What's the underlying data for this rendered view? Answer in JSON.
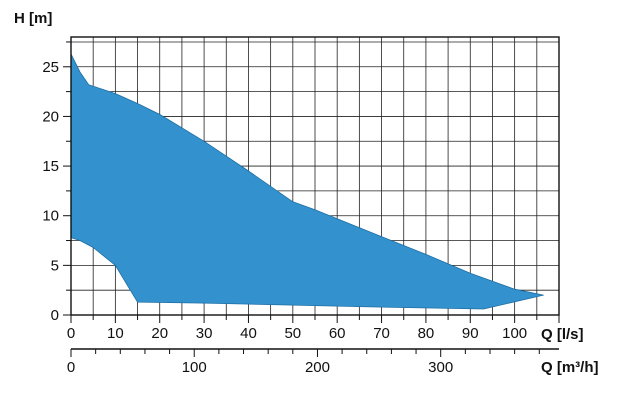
{
  "chart_data": {
    "type": "area",
    "ylabel": "H [m]",
    "xlabel": "Q [l/s]",
    "xlabel2": "Q [m³/h]",
    "xlim": [
      0,
      110
    ],
    "ylim": [
      0,
      28
    ],
    "x_ticks": [
      0,
      10,
      20,
      30,
      40,
      50,
      60,
      70,
      80,
      90,
      100
    ],
    "y_ticks": [
      0,
      5,
      10,
      15,
      20,
      25
    ],
    "x2_ticks": [
      0,
      100,
      200,
      300
    ],
    "grid": true,
    "fill_color": "#3392cd",
    "edge_color": "#1e6ea5",
    "upper_curve": [
      {
        "x": 0,
        "y": 26.3
      },
      {
        "x": 2,
        "y": 24.5
      },
      {
        "x": 4,
        "y": 23.2
      },
      {
        "x": 8,
        "y": 22.6
      },
      {
        "x": 10,
        "y": 22.3
      },
      {
        "x": 15,
        "y": 21.3
      },
      {
        "x": 20,
        "y": 20.2
      },
      {
        "x": 30,
        "y": 17.5
      },
      {
        "x": 40,
        "y": 14.5
      },
      {
        "x": 50,
        "y": 11.4
      },
      {
        "x": 55,
        "y": 10.6
      },
      {
        "x": 60,
        "y": 9.7
      },
      {
        "x": 70,
        "y": 7.9
      },
      {
        "x": 80,
        "y": 6.1
      },
      {
        "x": 90,
        "y": 4.2
      },
      {
        "x": 100,
        "y": 2.6
      },
      {
        "x": 106.5,
        "y": 2.0
      }
    ],
    "lower_curve": [
      {
        "x": 0,
        "y": 7.8
      },
      {
        "x": 2,
        "y": 7.5
      },
      {
        "x": 5,
        "y": 6.8
      },
      {
        "x": 10,
        "y": 5.0
      },
      {
        "x": 15,
        "y": 1.3
      },
      {
        "x": 30,
        "y": 1.2
      },
      {
        "x": 50,
        "y": 1.0
      },
      {
        "x": 70,
        "y": 0.8
      },
      {
        "x": 93,
        "y": 0.6
      },
      {
        "x": 106.5,
        "y": 2.0
      }
    ]
  }
}
